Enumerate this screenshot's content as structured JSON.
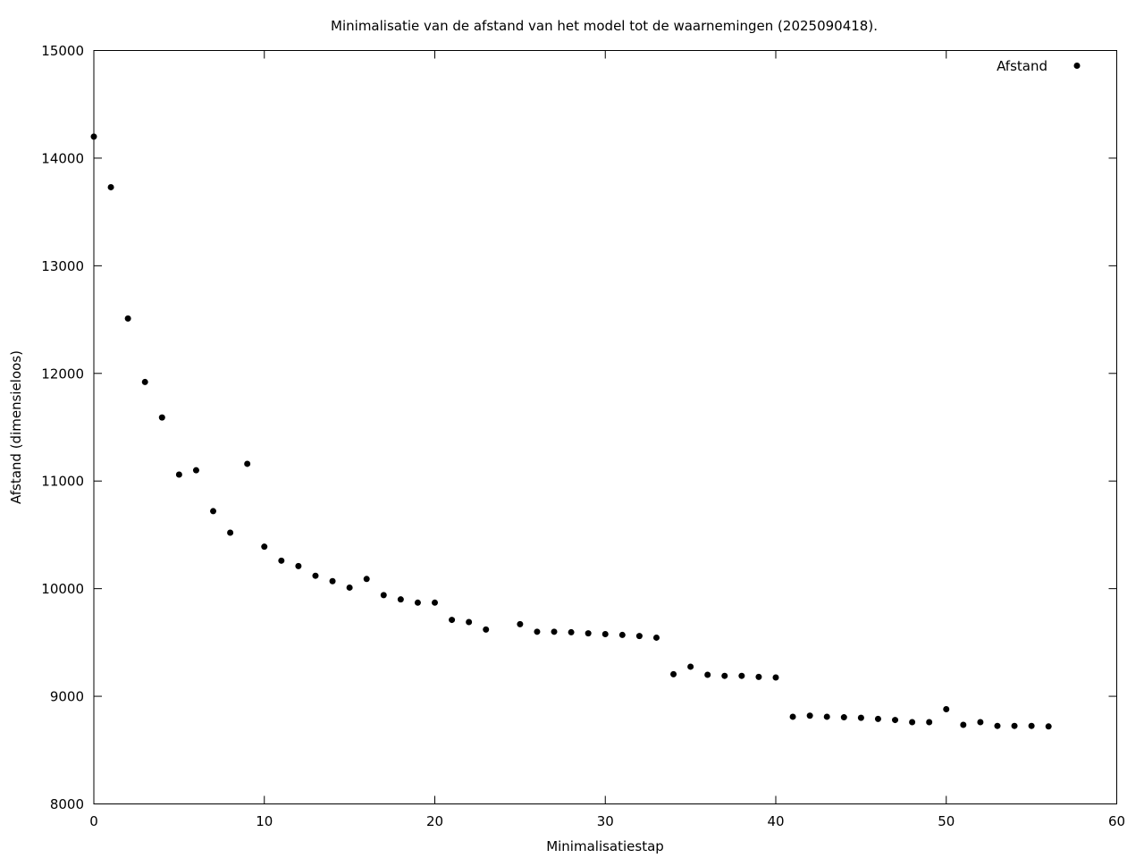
{
  "chart_data": {
    "type": "scatter",
    "title": "Minimalisatie van de afstand van het model tot de waarnemingen (2025090418).",
    "xlabel": "Minimalisatiestap",
    "ylabel": "Afstand (dimensieloos)",
    "xlim": [
      0,
      60
    ],
    "ylim": [
      8000,
      15000
    ],
    "xticks": [
      0,
      10,
      20,
      30,
      40,
      50,
      60
    ],
    "yticks": [
      8000,
      9000,
      10000,
      11000,
      12000,
      13000,
      14000,
      15000
    ],
    "grid": false,
    "legend_position": "top-right",
    "series": [
      {
        "name": "Afstand",
        "color": "#000000",
        "marker": "circle",
        "points": [
          [
            0,
            14200
          ],
          [
            1,
            13730
          ],
          [
            2,
            12510
          ],
          [
            3,
            11920
          ],
          [
            4,
            11590
          ],
          [
            5,
            11060
          ],
          [
            6,
            11100
          ],
          [
            7,
            10720
          ],
          [
            8,
            10520
          ],
          [
            9,
            11160
          ],
          [
            10,
            10390
          ],
          [
            11,
            10260
          ],
          [
            12,
            10210
          ],
          [
            13,
            10120
          ],
          [
            14,
            10070
          ],
          [
            15,
            10010
          ],
          [
            16,
            10090
          ],
          [
            17,
            9940
          ],
          [
            18,
            9900
          ],
          [
            19,
            9870
          ],
          [
            20,
            9870
          ],
          [
            21,
            9710
          ],
          [
            22,
            9690
          ],
          [
            23,
            9620
          ],
          [
            25,
            9670
          ],
          [
            26,
            9600
          ],
          [
            27,
            9600
          ],
          [
            28,
            9595
          ],
          [
            29,
            9585
          ],
          [
            30,
            9578
          ],
          [
            31,
            9570
          ],
          [
            32,
            9560
          ],
          [
            33,
            9545
          ],
          [
            34,
            9205
          ],
          [
            35,
            9275
          ],
          [
            36,
            9200
          ],
          [
            37,
            9190
          ],
          [
            38,
            9190
          ],
          [
            39,
            9180
          ],
          [
            40,
            9175
          ],
          [
            41,
            8810
          ],
          [
            42,
            8820
          ],
          [
            43,
            8810
          ],
          [
            44,
            8805
          ],
          [
            45,
            8800
          ],
          [
            46,
            8790
          ],
          [
            47,
            8780
          ],
          [
            48,
            8760
          ],
          [
            49,
            8760
          ],
          [
            50,
            8880
          ],
          [
            51,
            8735
          ],
          [
            52,
            8760
          ],
          [
            53,
            8725
          ],
          [
            54,
            8725
          ],
          [
            55,
            8725
          ],
          [
            56,
            8720
          ]
        ]
      }
    ]
  }
}
